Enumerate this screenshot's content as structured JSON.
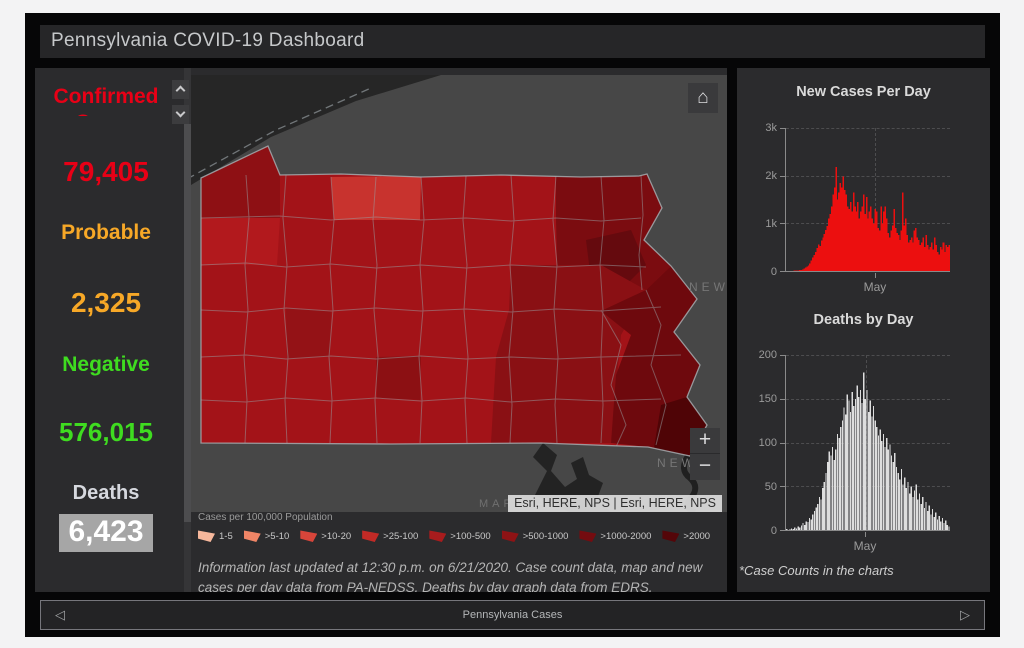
{
  "header": {
    "title": "Pennsylvania COVID-19 Dashboard"
  },
  "indicators": [
    {
      "label": "Confirmed Cases",
      "value": "79,405",
      "color": "#e80016"
    },
    {
      "label": "Probable",
      "value": "2,325",
      "color": "#f7a827"
    },
    {
      "label": "Negative",
      "value": "576,015",
      "color": "#3fdc20"
    },
    {
      "label": "Deaths",
      "value": "6,423",
      "color": "#d6d8de",
      "value_color": "#ffffff",
      "value_bg": "#a6a6a6"
    }
  ],
  "map": {
    "basemap_labels": [
      "NEW",
      "NEW",
      "MARYLAND"
    ],
    "attribution": "Esri, HERE, NPS | Esri, HERE, NPS",
    "legend": {
      "title": "Cases per 100,000 Population",
      "classes": [
        {
          "label": "1-5",
          "color": "#f7b89c"
        },
        {
          "label": ">5-10",
          "color": "#ef8566"
        },
        {
          "label": ">10-20",
          "color": "#d8453a"
        },
        {
          "label": ">25-100",
          "color": "#c22a26"
        },
        {
          "label": ">100-500",
          "color": "#a81c1d"
        },
        {
          "label": ">500-1000",
          "color": "#8e1315"
        },
        {
          "label": ">1000-2000",
          "color": "#740c10"
        },
        {
          "label": ">2000",
          "color": "#540609"
        }
      ]
    },
    "info_text": "Information last updated at 12:30 p.m. on 6/21/2020. Case count data, map and new cases per day data from PA-NEDSS.  Deaths by day graph data from EDRS."
  },
  "icons": {
    "home": "⌂",
    "zoom_in": "+",
    "zoom_out": "−",
    "prev": "◁",
    "next": "▷"
  },
  "charts_footnote": "*Case Counts in the charts",
  "footer": {
    "tab_label": "Pennsylvania Cases"
  },
  "chart_data": [
    {
      "type": "bar",
      "title": "New Cases Per Day",
      "color": "#ec0f0f",
      "ylim": [
        0,
        3000
      ],
      "y_ticks": [
        {
          "label": "0",
          "value": 0
        },
        {
          "label": "1k",
          "value": 1000
        },
        {
          "label": "2k",
          "value": 2000
        },
        {
          "label": "3k",
          "value": 3000
        }
      ],
      "x_tick": {
        "label": "May",
        "pos": 0.545
      },
      "grid": "dashed",
      "bar_width_ratio": 1.06,
      "values": [
        2,
        1,
        3,
        2,
        4,
        6,
        8,
        10,
        12,
        18,
        25,
        35,
        50,
        70,
        90,
        120,
        160,
        220,
        280,
        340,
        400,
        480,
        560,
        520,
        640,
        700,
        780,
        860,
        940,
        1100,
        1200,
        1350,
        1600,
        1750,
        2180,
        1500,
        1650,
        1850,
        1750,
        1980,
        1700,
        1600,
        1350,
        1300,
        1450,
        1250,
        1650,
        1350,
        1250,
        1450,
        1100,
        1250,
        1350,
        1600,
        1200,
        1550,
        1100,
        1250,
        1350,
        1100,
        1000,
        1300,
        1250,
        900,
        850,
        1350,
        1000,
        1250,
        1350,
        1100,
        800,
        700,
        850,
        950,
        1300,
        900,
        800,
        750,
        650,
        850,
        1650,
        950,
        1100,
        750,
        600,
        650,
        700,
        600,
        850,
        900,
        700,
        650,
        550,
        600,
        700,
        500,
        750,
        550,
        450,
        500,
        600,
        450,
        700,
        550,
        400,
        350,
        500,
        450,
        600,
        400,
        550,
        500,
        550
      ]
    },
    {
      "type": "bar",
      "title": "Deaths by Day",
      "color": "#dedede",
      "ylim": [
        0,
        200
      ],
      "y_ticks": [
        {
          "label": "0",
          "value": 0
        },
        {
          "label": "50",
          "value": 50
        },
        {
          "label": "100",
          "value": 100
        },
        {
          "label": "150",
          "value": 150
        },
        {
          "label": "200",
          "value": 200
        }
      ],
      "x_tick": {
        "label": "May",
        "pos": 0.485
      },
      "grid": "dashed",
      "bar_width_ratio": 0.78,
      "values": [
        1,
        0,
        1,
        2,
        1,
        3,
        2,
        4,
        3,
        5,
        8,
        6,
        10,
        9,
        14,
        12,
        18,
        22,
        26,
        30,
        38,
        35,
        48,
        55,
        65,
        78,
        90,
        85,
        95,
        80,
        92,
        110,
        105,
        118,
        125,
        140,
        132,
        155,
        148,
        135,
        158,
        142,
        150,
        165,
        152,
        160,
        145,
        180,
        150,
        160,
        135,
        148,
        130,
        142,
        125,
        118,
        108,
        115,
        102,
        110,
        95,
        105,
        92,
        98,
        85,
        78,
        88,
        72,
        65,
        58,
        70,
        52,
        60,
        48,
        55,
        42,
        50,
        38,
        45,
        52,
        35,
        42,
        30,
        38,
        25,
        32,
        22,
        28,
        18,
        24,
        15,
        20,
        12,
        16,
        10,
        14,
        8,
        11,
        6,
        4
      ]
    }
  ]
}
